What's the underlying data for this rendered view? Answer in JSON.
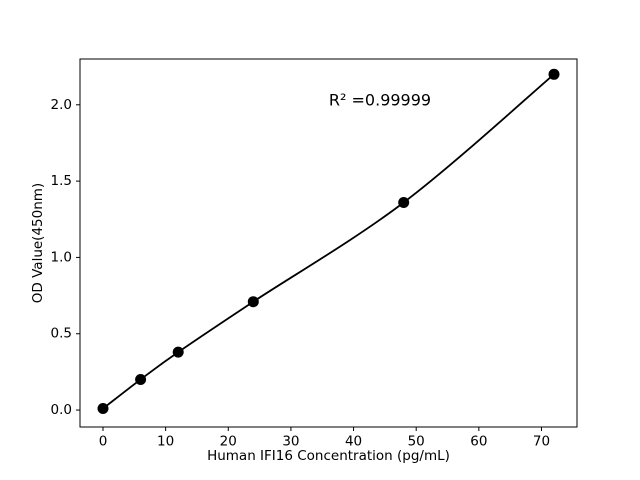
{
  "figure": {
    "background": "#ffffff",
    "text_color": "#000000"
  },
  "chart_data": {
    "type": "scatter",
    "title": "",
    "xlabel": "Human IFI16 Concentration (pg/mL)",
    "ylabel": "OD Value(450nm)",
    "annotation": "R² =0.99999",
    "x": [
      0,
      6,
      12,
      24,
      48,
      72
    ],
    "y": [
      0.01,
      0.2,
      0.38,
      0.71,
      1.36,
      2.2
    ],
    "series": [
      {
        "name": "standard-curve",
        "style": "filled-circle-markers-with-smooth-fit-line"
      }
    ],
    "xticks": [
      0,
      10,
      20,
      30,
      40,
      50,
      60,
      70
    ],
    "xtick_labels": [
      "0",
      "10",
      "20",
      "30",
      "40",
      "50",
      "60",
      "70"
    ],
    "yticks": [
      0,
      0.5,
      1.0,
      1.5,
      2.0
    ],
    "ytick_labels": [
      "0.0",
      "0.5",
      "1.0",
      "1.5",
      "2.0"
    ],
    "xlim": [
      -3.67,
      75.67
    ],
    "ylim": [
      -0.111,
      2.3
    ],
    "grid": false,
    "legend_position": "none",
    "marker_color": "#000000",
    "line_color": "#000000",
    "frame_color": "#000000"
  }
}
